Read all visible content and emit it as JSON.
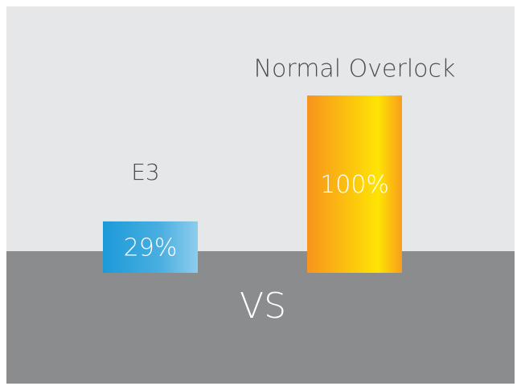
{
  "chart_data": {
    "type": "bar",
    "categories": [
      "E3",
      "Normal Overlock"
    ],
    "values": [
      29,
      100
    ],
    "value_labels": [
      "29%",
      "100%"
    ],
    "colors": [
      "#1c9ad8",
      "#f7941d"
    ],
    "ylim": [
      0,
      100
    ],
    "annotations": [
      "VS"
    ]
  }
}
